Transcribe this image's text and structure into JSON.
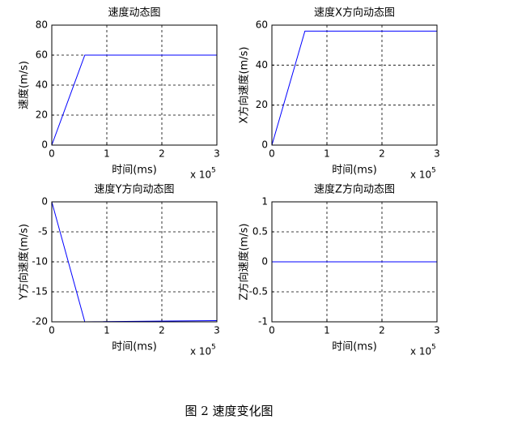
{
  "chart_data": [
    {
      "type": "line",
      "title": "速度动态图",
      "xlabel": "时间(ms)",
      "ylabel": "速度(m/s)",
      "x_scale_label": {
        "base": "x 10",
        "power": "5"
      },
      "x": [
        0,
        0.6,
        3
      ],
      "series": [
        {
          "color": "#0000ff",
          "values": [
            0,
            60,
            60
          ]
        }
      ],
      "xlim": [
        0,
        3
      ],
      "xticks": [
        0,
        1,
        2,
        3
      ],
      "ylim": [
        0,
        80
      ],
      "yticks": [
        0,
        20,
        40,
        60,
        80
      ],
      "grid": true
    },
    {
      "type": "line",
      "title": "速度X方向动态图",
      "xlabel": "时间(ms)",
      "ylabel": "X方向速度(m/s)",
      "x_scale_label": {
        "base": "x 10",
        "power": "5"
      },
      "x": [
        0,
        0.6,
        3
      ],
      "series": [
        {
          "color": "#0000ff",
          "values": [
            0,
            57,
            57
          ]
        }
      ],
      "xlim": [
        0,
        3
      ],
      "xticks": [
        0,
        1,
        2,
        3
      ],
      "ylim": [
        0,
        60
      ],
      "yticks": [
        0,
        20,
        40,
        60
      ],
      "grid": true
    },
    {
      "type": "line",
      "title": "速度Y方向动态图",
      "xlabel": "时间(ms)",
      "ylabel": "Y方向速度(m/s)",
      "x_scale_label": {
        "base": "x 10",
        "power": "5"
      },
      "x": [
        0,
        0.6,
        3
      ],
      "series": [
        {
          "color": "#0000ff",
          "values": [
            0,
            -20,
            -19.8
          ]
        }
      ],
      "xlim": [
        0,
        3
      ],
      "xticks": [
        0,
        1,
        2,
        3
      ],
      "ylim": [
        -20,
        0
      ],
      "yticks": [
        -20,
        -15,
        -10,
        -5,
        0
      ],
      "grid": true
    },
    {
      "type": "line",
      "title": "速度Z方向动态图",
      "xlabel": "时间(ms)",
      "ylabel": "Z方向速度(m/s)",
      "x_scale_label": {
        "base": "x 10",
        "power": "5"
      },
      "x": [
        0,
        0.6,
        3
      ],
      "series": [
        {
          "color": "#0000ff",
          "values": [
            0,
            0,
            0
          ]
        }
      ],
      "xlim": [
        0,
        3
      ],
      "xticks": [
        0,
        1,
        2,
        3
      ],
      "ylim": [
        -1,
        1
      ],
      "yticks": [
        -1,
        -0.5,
        0,
        0.5,
        1
      ],
      "grid": true
    }
  ],
  "caption": "图 2  速度变化图"
}
